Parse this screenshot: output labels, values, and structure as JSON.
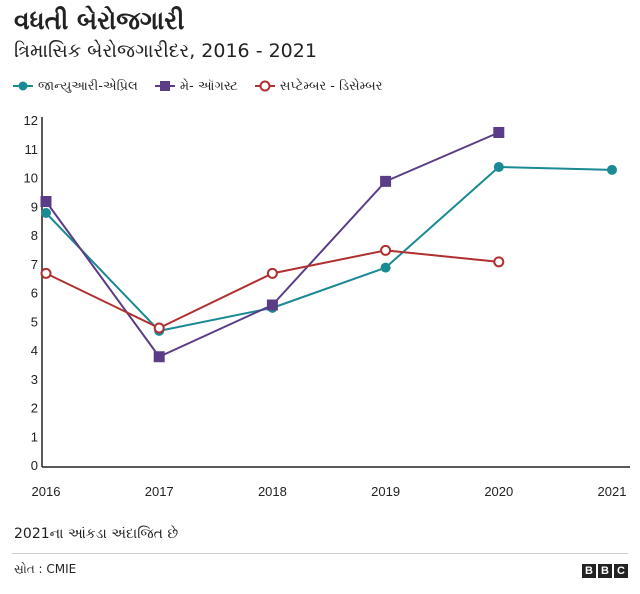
{
  "title": "વધતી બેરોજગારી",
  "subtitle": "ત્રિમાસિક બેરોજગારીદર, 2016 - 2021",
  "note": "2021ના આંકડા અંદાજિત છે",
  "source": "સ્રોત : CMIE",
  "logo": [
    "B",
    "B",
    "C"
  ],
  "chart_data": {
    "type": "line",
    "x": [
      "2016",
      "2017",
      "2018",
      "2019",
      "2020",
      "2021"
    ],
    "ylim": [
      0,
      12
    ],
    "yticks": [
      "0",
      "1",
      "2",
      "3",
      "4",
      "5",
      "6",
      "7",
      "8",
      "9",
      "10",
      "11",
      "12"
    ],
    "grid": false,
    "legend_position": "top-left",
    "series": [
      {
        "name": "જાન્યુઆરી-એપ્રિલ",
        "color": "#1a8a94",
        "marker": "circle-filled",
        "values": [
          8.8,
          4.7,
          5.5,
          6.9,
          10.4,
          10.3
        ]
      },
      {
        "name": "મે- ઑગસ્ટ",
        "color": "#5b3c87",
        "marker": "square",
        "values": [
          9.2,
          3.8,
          5.6,
          9.9,
          11.6,
          null
        ]
      },
      {
        "name": "સપ્ટેમ્બર - ડિસેમ્બર",
        "color": "#b03030",
        "marker": "circle-open",
        "values": [
          6.7,
          4.8,
          6.7,
          7.5,
          7.1,
          null
        ]
      }
    ]
  }
}
